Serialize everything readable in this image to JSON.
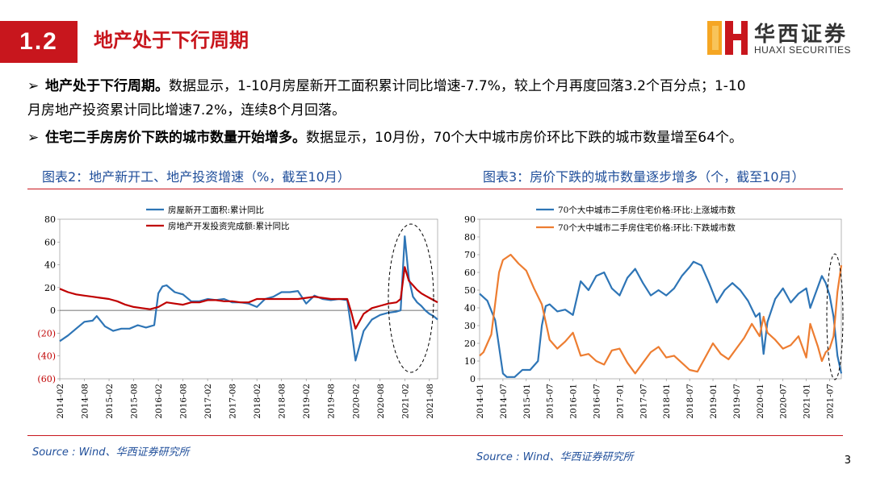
{
  "header": {
    "section_number": "1.2",
    "title": "地产处于下行周期",
    "logo_cn": "华西证券",
    "logo_en": "HUAXI SECURITIES"
  },
  "bullets": [
    {
      "marker": "➢",
      "bold": "地产处于下行周期。",
      "line1": "数据显示，1-10月房屋新开工面积累计同比增速-7.7%，较上个月再度回落3.2个百分点；1-10",
      "line2": "月房地产投资累计同比增速7.2%，连续8个月回落。"
    },
    {
      "marker": "➢",
      "bold": "住宅二手房房价下跌的城市数量开始增多。",
      "line1": "数据显示，10月份，70个大中城市房价环比下跌的城市数量增至64个。"
    }
  ],
  "left_chart_title": "图表2：地产新开工、地产投资增速（%，截至10月）",
  "right_chart_title": "图表3：房价下跌的城市数量逐步增多（个，截至10月）",
  "left_source": "Source : Wind、华西证券研究所",
  "right_source": "Source : Wind、华西证券研究所",
  "page_number": "3",
  "colors": {
    "brand_red": "#c8161d",
    "title_blue": "#1f4e9a",
    "series_blue": "#2e75b6",
    "series_red": "#c00000",
    "series_orange": "#ed7d31"
  },
  "chart_data": [
    {
      "type": "line",
      "title": "图表2：地产新开工、地产投资增速（%，截至10月）",
      "ylim": [
        -60,
        80
      ],
      "yticks": [
        "80",
        "60",
        "40",
        "20",
        "0",
        "(20)",
        "(40)",
        "(60)"
      ],
      "xticks": [
        "2014-02",
        "2014-08",
        "2015-02",
        "2015-08",
        "2016-02",
        "2016-08",
        "2017-02",
        "2017-08",
        "2018-02",
        "2018-08",
        "2019-02",
        "2019-08",
        "2020-02",
        "2020-08",
        "2021-02",
        "2021-08"
      ],
      "series": [
        {
          "name": "房屋新开工面积:累计同比",
          "color": "#2e75b6",
          "points": [
            [
              "2014-02",
              -27
            ],
            [
              "2014-04",
              -22
            ],
            [
              "2014-06",
              -16
            ],
            [
              "2014-08",
              -10
            ],
            [
              "2014-10",
              -9
            ],
            [
              "2014-11",
              -5
            ],
            [
              "2015-01",
              -14
            ],
            [
              "2015-03",
              -18
            ],
            [
              "2015-05",
              -16
            ],
            [
              "2015-07",
              -16
            ],
            [
              "2015-09",
              -13
            ],
            [
              "2015-11",
              -15
            ],
            [
              "2015-12",
              -14
            ],
            [
              "2016-01",
              -13
            ],
            [
              "2016-02",
              15
            ],
            [
              "2016-03",
              21
            ],
            [
              "2016-04",
              22
            ],
            [
              "2016-06",
              16
            ],
            [
              "2016-08",
              14
            ],
            [
              "2016-10",
              8
            ],
            [
              "2016-12",
              8
            ],
            [
              "2017-02",
              10
            ],
            [
              "2017-04",
              9
            ],
            [
              "2017-06",
              10
            ],
            [
              "2017-08",
              7
            ],
            [
              "2017-10",
              7
            ],
            [
              "2017-12",
              6
            ],
            [
              "2018-02",
              3
            ],
            [
              "2018-04",
              10
            ],
            [
              "2018-06",
              12
            ],
            [
              "2018-08",
              16
            ],
            [
              "2018-10",
              16
            ],
            [
              "2018-12",
              17
            ],
            [
              "2019-02",
              6
            ],
            [
              "2019-04",
              13
            ],
            [
              "2019-06",
              10
            ],
            [
              "2019-08",
              9
            ],
            [
              "2019-10",
              10
            ],
            [
              "2019-12",
              9
            ],
            [
              "2020-01",
              -16
            ],
            [
              "2020-02",
              -44
            ],
            [
              "2020-04",
              -18
            ],
            [
              "2020-06",
              -8
            ],
            [
              "2020-08",
              -4
            ],
            [
              "2020-10",
              -2
            ],
            [
              "2020-12",
              -1
            ],
            [
              "2021-01",
              0
            ],
            [
              "2021-02",
              65
            ],
            [
              "2021-03",
              28
            ],
            [
              "2021-04",
              12
            ],
            [
              "2021-05",
              7
            ],
            [
              "2021-06",
              4
            ],
            [
              "2021-07",
              0
            ],
            [
              "2021-08",
              -3
            ],
            [
              "2021-09",
              -5
            ],
            [
              "2021-10",
              -8
            ]
          ]
        },
        {
          "name": "房地产开发投资完成额:累计同比",
          "color": "#c00000",
          "points": [
            [
              "2014-02",
              19
            ],
            [
              "2014-04",
              16
            ],
            [
              "2014-06",
              14
            ],
            [
              "2014-08",
              13
            ],
            [
              "2014-10",
              12
            ],
            [
              "2014-12",
              11
            ],
            [
              "2015-02",
              10
            ],
            [
              "2015-04",
              8
            ],
            [
              "2015-06",
              5
            ],
            [
              "2015-08",
              3
            ],
            [
              "2015-10",
              2
            ],
            [
              "2015-12",
              1
            ],
            [
              "2016-02",
              3
            ],
            [
              "2016-04",
              7
            ],
            [
              "2016-06",
              6
            ],
            [
              "2016-08",
              5
            ],
            [
              "2016-10",
              7
            ],
            [
              "2016-12",
              7
            ],
            [
              "2017-02",
              9
            ],
            [
              "2017-04",
              9
            ],
            [
              "2017-06",
              8
            ],
            [
              "2017-08",
              8
            ],
            [
              "2017-10",
              7
            ],
            [
              "2017-12",
              7
            ],
            [
              "2018-02",
              10
            ],
            [
              "2018-04",
              10
            ],
            [
              "2018-06",
              10
            ],
            [
              "2018-08",
              10
            ],
            [
              "2018-10",
              10
            ],
            [
              "2018-12",
              10
            ],
            [
              "2019-02",
              11
            ],
            [
              "2019-04",
              12
            ],
            [
              "2019-06",
              11
            ],
            [
              "2019-08",
              10
            ],
            [
              "2019-10",
              10
            ],
            [
              "2019-12",
              10
            ],
            [
              "2020-01",
              -2
            ],
            [
              "2020-02",
              -16
            ],
            [
              "2020-04",
              -3
            ],
            [
              "2020-06",
              2
            ],
            [
              "2020-08",
              4
            ],
            [
              "2020-10",
              6
            ],
            [
              "2020-12",
              7
            ],
            [
              "2021-01",
              10
            ],
            [
              "2021-02",
              38
            ],
            [
              "2021-03",
              26
            ],
            [
              "2021-04",
              22
            ],
            [
              "2021-05",
              18
            ],
            [
              "2021-06",
              15
            ],
            [
              "2021-07",
              13
            ],
            [
              "2021-08",
              11
            ],
            [
              "2021-09",
              9
            ],
            [
              "2021-10",
              7
            ]
          ]
        }
      ]
    },
    {
      "type": "line",
      "title": "图表3：房价下跌的城市数量逐步增多（个，截至10月）",
      "ylim": [
        0,
        90
      ],
      "yticks": [
        "90",
        "80",
        "70",
        "60",
        "50",
        "40",
        "30",
        "20",
        "10",
        "0"
      ],
      "xticks": [
        "2014-01",
        "2014-07",
        "2015-01",
        "2015-07",
        "2016-01",
        "2016-07",
        "2017-01",
        "2017-07",
        "2018-01",
        "2018-07",
        "2019-01",
        "2019-07",
        "2020-01",
        "2020-07",
        "2021-01",
        "2021-07"
      ],
      "series": [
        {
          "name": "70个大中城市二手房住宅价格:环比:上涨城市数",
          "color": "#2e75b6",
          "points": [
            [
              "2014-01",
              48
            ],
            [
              "2014-03",
              44
            ],
            [
              "2014-05",
              33
            ],
            [
              "2014-07",
              3
            ],
            [
              "2014-08",
              1
            ],
            [
              "2014-10",
              1
            ],
            [
              "2014-12",
              5
            ],
            [
              "2015-02",
              5
            ],
            [
              "2015-04",
              10
            ],
            [
              "2015-05",
              30
            ],
            [
              "2015-06",
              41
            ],
            [
              "2015-07",
              42
            ],
            [
              "2015-09",
              38
            ],
            [
              "2015-11",
              39
            ],
            [
              "2016-01",
              36
            ],
            [
              "2016-03",
              55
            ],
            [
              "2016-05",
              50
            ],
            [
              "2016-07",
              58
            ],
            [
              "2016-09",
              60
            ],
            [
              "2016-11",
              51
            ],
            [
              "2017-01",
              47
            ],
            [
              "2017-03",
              57
            ],
            [
              "2017-05",
              62
            ],
            [
              "2017-07",
              54
            ],
            [
              "2017-09",
              47
            ],
            [
              "2017-11",
              50
            ],
            [
              "2018-01",
              47
            ],
            [
              "2018-03",
              51
            ],
            [
              "2018-05",
              58
            ],
            [
              "2018-07",
              63
            ],
            [
              "2018-08",
              66
            ],
            [
              "2018-10",
              64
            ],
            [
              "2018-12",
              54
            ],
            [
              "2019-02",
              43
            ],
            [
              "2019-04",
              50
            ],
            [
              "2019-06",
              54
            ],
            [
              "2019-08",
              50
            ],
            [
              "2019-10",
              44
            ],
            [
              "2019-12",
              35
            ],
            [
              "2020-01",
              37
            ],
            [
              "2020-02",
              14
            ],
            [
              "2020-03",
              32
            ],
            [
              "2020-05",
              45
            ],
            [
              "2020-07",
              51
            ],
            [
              "2020-09",
              43
            ],
            [
              "2020-11",
              48
            ],
            [
              "2021-01",
              51
            ],
            [
              "2021-02",
              40
            ],
            [
              "2021-04",
              52
            ],
            [
              "2021-05",
              58
            ],
            [
              "2021-06",
              54
            ],
            [
              "2021-07",
              47
            ],
            [
              "2021-08",
              35
            ],
            [
              "2021-09",
              13
            ],
            [
              "2021-10",
              3
            ]
          ]
        },
        {
          "name": "70个大中城市二手房住宅价格:环比:下跌城市数",
          "color": "#ed7d31",
          "points": [
            [
              "2014-01",
              13
            ],
            [
              "2014-02",
              15
            ],
            [
              "2014-04",
              25
            ],
            [
              "2014-06",
              60
            ],
            [
              "2014-07",
              67
            ],
            [
              "2014-09",
              70
            ],
            [
              "2014-11",
              65
            ],
            [
              "2015-01",
              61
            ],
            [
              "2015-03",
              51
            ],
            [
              "2015-05",
              42
            ],
            [
              "2015-07",
              22
            ],
            [
              "2015-09",
              17
            ],
            [
              "2015-11",
              21
            ],
            [
              "2016-01",
              26
            ],
            [
              "2016-03",
              13
            ],
            [
              "2016-05",
              14
            ],
            [
              "2016-07",
              10
            ],
            [
              "2016-09",
              8
            ],
            [
              "2016-11",
              16
            ],
            [
              "2017-01",
              17
            ],
            [
              "2017-03",
              9
            ],
            [
              "2017-05",
              3
            ],
            [
              "2017-07",
              9
            ],
            [
              "2017-09",
              15
            ],
            [
              "2017-11",
              18
            ],
            [
              "2018-01",
              12
            ],
            [
              "2018-03",
              13
            ],
            [
              "2018-05",
              9
            ],
            [
              "2018-07",
              5
            ],
            [
              "2018-09",
              4
            ],
            [
              "2018-11",
              12
            ],
            [
              "2019-01",
              20
            ],
            [
              "2019-03",
              14
            ],
            [
              "2019-05",
              11
            ],
            [
              "2019-07",
              17
            ],
            [
              "2019-09",
              23
            ],
            [
              "2019-11",
              31
            ],
            [
              "2020-01",
              24
            ],
            [
              "2020-02",
              35
            ],
            [
              "2020-03",
              26
            ],
            [
              "2020-05",
              22
            ],
            [
              "2020-07",
              17
            ],
            [
              "2020-09",
              19
            ],
            [
              "2020-11",
              24
            ],
            [
              "2021-01",
              12
            ],
            [
              "2021-02",
              31
            ],
            [
              "2021-04",
              18
            ],
            [
              "2021-05",
              10
            ],
            [
              "2021-06",
              15
            ],
            [
              "2021-07",
              17
            ],
            [
              "2021-08",
              24
            ],
            [
              "2021-09",
              49
            ],
            [
              "2021-10",
              64
            ]
          ]
        }
      ]
    }
  ]
}
